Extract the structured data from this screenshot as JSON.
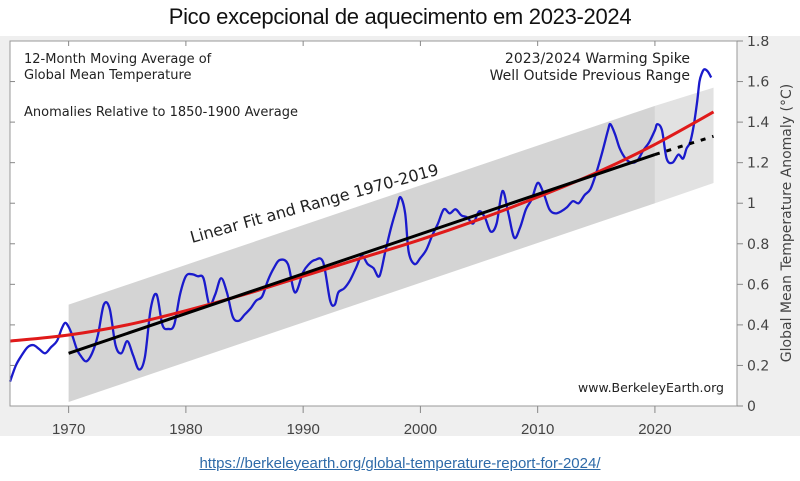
{
  "slide": {
    "title": "Pico excepcional de aquecimento em 2023-2024",
    "source_link": "https://berkeleyearth.org/global-temperature-report-for-2024/"
  },
  "chart_data": {
    "type": "line",
    "title": "12-Month Moving Average of Global Mean Temperature",
    "annotations": {
      "top_left_line1": "12-Month Moving Average of",
      "top_left_line2": "Global Mean Temperature",
      "subtitle": "Anomalies Relative to 1850-1900 Average",
      "top_right_line1": "2023/2024 Warming Spike",
      "top_right_line2": "Well Outside Previous Range",
      "fit_label": "Linear Fit and Range 1970-2019",
      "credit": "www.BerkeleyEarth.org"
    },
    "xlabel": "",
    "ylabel": "Global Mean Temperature Anomaly (°C)",
    "xlim": [
      1965,
      2027
    ],
    "ylim": [
      0,
      1.8
    ],
    "x_ticks": [
      1970,
      1980,
      1990,
      2000,
      2010,
      2020
    ],
    "x_tick_labels": [
      "1970",
      "1980",
      "1990",
      "2000",
      "2010",
      "2020"
    ],
    "y_ticks": [
      0,
      0.2,
      0.4,
      0.6,
      0.8,
      1,
      1.2,
      1.4,
      1.6,
      1.8
    ],
    "y_tick_labels": [
      "0",
      "0.2",
      "0.4",
      "0.6",
      "0.8",
      "1",
      "1.2",
      "1.4",
      "1.6",
      "1.8"
    ],
    "y_axis_side": "right",
    "grid": false,
    "colors": {
      "temperature": "#1a1acc",
      "smooth_trend": "#e01a1a",
      "linear_fit": "#000000",
      "range_band": "#d4d4d4",
      "range_band_extension": "#e2e2e2"
    },
    "series": [
      {
        "name": "12-month moving average",
        "x": [
          1965.0,
          1965.5,
          1966.0,
          1966.5,
          1967.0,
          1967.5,
          1968.0,
          1968.5,
          1969.0,
          1969.4,
          1969.7,
          1970.0,
          1970.3,
          1970.7,
          1971.0,
          1971.5,
          1972.0,
          1972.5,
          1973.0,
          1973.5,
          1974.0,
          1974.5,
          1975.0,
          1975.5,
          1976.0,
          1976.5,
          1977.0,
          1977.5,
          1978.0,
          1978.5,
          1979.0,
          1979.5,
          1980.0,
          1980.5,
          1981.0,
          1981.5,
          1982.0,
          1982.5,
          1983.0,
          1983.5,
          1984.0,
          1984.5,
          1985.0,
          1985.5,
          1986.0,
          1986.5,
          1987.0,
          1987.5,
          1988.0,
          1988.7,
          1989.3,
          1990.0,
          1990.5,
          1991.0,
          1991.7,
          1992.3,
          1992.7,
          1993.0,
          1993.5,
          1994.0,
          1994.5,
          1995.0,
          1995.5,
          1996.0,
          1996.5,
          1997.0,
          1997.5,
          1998.0,
          1998.3,
          1998.7,
          1999.0,
          1999.5,
          2000.0,
          2000.5,
          2001.0,
          2001.5,
          2002.0,
          2002.5,
          2003.0,
          2003.5,
          2004.0,
          2004.5,
          2005.0,
          2005.5,
          2006.0,
          2006.5,
          2007.0,
          2007.5,
          2008.0,
          2008.5,
          2009.0,
          2009.5,
          2010.0,
          2010.5,
          2011.0,
          2011.5,
          2012.0,
          2012.5,
          2013.0,
          2013.5,
          2014.0,
          2014.5,
          2015.0,
          2015.5,
          2016.0,
          2016.2,
          2016.6,
          2017.0,
          2017.5,
          2018.0,
          2018.5,
          2019.0,
          2019.5,
          2020.0,
          2020.2,
          2020.6,
          2021.0,
          2021.5,
          2022.0,
          2022.4,
          2022.7,
          2023.0,
          2023.3,
          2023.6,
          2023.8,
          2024.0,
          2024.2,
          2024.5,
          2024.8
        ],
        "values": [
          0.12,
          0.2,
          0.25,
          0.29,
          0.3,
          0.28,
          0.26,
          0.29,
          0.32,
          0.38,
          0.41,
          0.39,
          0.35,
          0.28,
          0.25,
          0.22,
          0.26,
          0.35,
          0.5,
          0.48,
          0.3,
          0.26,
          0.32,
          0.25,
          0.18,
          0.24,
          0.48,
          0.55,
          0.4,
          0.38,
          0.4,
          0.55,
          0.64,
          0.65,
          0.64,
          0.63,
          0.5,
          0.55,
          0.63,
          0.56,
          0.44,
          0.42,
          0.45,
          0.48,
          0.52,
          0.54,
          0.62,
          0.68,
          0.72,
          0.7,
          0.56,
          0.66,
          0.7,
          0.72,
          0.71,
          0.52,
          0.5,
          0.56,
          0.58,
          0.62,
          0.68,
          0.74,
          0.7,
          0.68,
          0.64,
          0.76,
          0.88,
          0.98,
          1.03,
          0.95,
          0.76,
          0.7,
          0.73,
          0.77,
          0.84,
          0.9,
          0.97,
          0.95,
          0.97,
          0.94,
          0.93,
          0.9,
          0.96,
          0.93,
          0.86,
          0.9,
          1.06,
          0.95,
          0.83,
          0.88,
          0.97,
          1.02,
          1.1,
          1.05,
          0.97,
          0.95,
          0.96,
          0.98,
          1.01,
          1.0,
          1.04,
          1.07,
          1.15,
          1.25,
          1.36,
          1.39,
          1.34,
          1.27,
          1.22,
          1.2,
          1.21,
          1.26,
          1.3,
          1.36,
          1.39,
          1.36,
          1.22,
          1.2,
          1.24,
          1.22,
          1.27,
          1.3,
          1.38,
          1.5,
          1.6,
          1.64,
          1.66,
          1.65,
          1.62
        ]
      },
      {
        "name": "Smooth trend",
        "x": [
          1965,
          1970,
          1975,
          1980,
          1985,
          1990,
          1995,
          2000,
          2005,
          2010,
          2015,
          2020,
          2025
        ],
        "values": [
          0.32,
          0.35,
          0.4,
          0.47,
          0.55,
          0.64,
          0.73,
          0.82,
          0.92,
          1.03,
          1.15,
          1.29,
          1.45
        ]
      },
      {
        "name": "Linear fit 1970-2019",
        "x": [
          1970,
          2020
        ],
        "values": [
          0.26,
          1.24
        ]
      },
      {
        "name": "Linear fit extrapolation",
        "x": [
          2020,
          2025
        ],
        "values": [
          1.24,
          1.33
        ],
        "style": "dashed"
      }
    ],
    "range_band": {
      "x": [
        1970,
        2020
      ],
      "lower": [
        0.02,
        1.0
      ],
      "upper": [
        0.5,
        1.48
      ]
    },
    "range_band_extension": {
      "x": [
        2020,
        2025
      ],
      "lower": [
        1.0,
        1.1
      ],
      "upper": [
        1.48,
        1.57
      ]
    }
  }
}
